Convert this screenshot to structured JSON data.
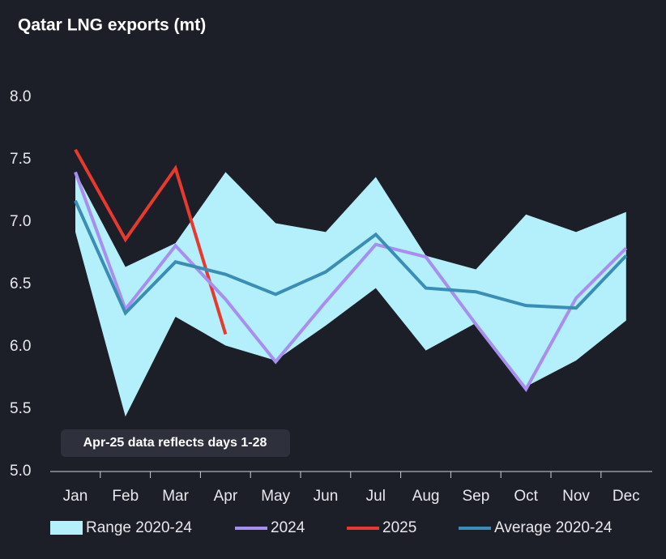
{
  "chart_data": {
    "type": "line",
    "title": "Qatar LNG exports (mt)",
    "categories": [
      "Jan",
      "Feb",
      "Mar",
      "Apr",
      "May",
      "Jun",
      "Jul",
      "Aug",
      "Sep",
      "Oct",
      "Nov",
      "Dec"
    ],
    "ylim": [
      5,
      8
    ],
    "yticks": [
      {
        "value": 5,
        "label": "5.0"
      },
      5.5,
      {
        "value": 6,
        "label": "6.0"
      },
      6.5,
      {
        "value": 7,
        "label": "7.0"
      },
      7.5,
      {
        "value": 8,
        "label": "8.0"
      }
    ],
    "range": {
      "name": "Range 2020-24",
      "color": "#b3f0fb",
      "upper": [
        7.4,
        6.64,
        6.83,
        7.4,
        6.99,
        6.92,
        7.36,
        6.73,
        6.62,
        7.06,
        6.92,
        7.08
      ],
      "lower": [
        6.92,
        5.44,
        6.24,
        6.01,
        5.89,
        6.17,
        6.47,
        5.97,
        6.19,
        5.68,
        5.89,
        6.21
      ]
    },
    "series": [
      {
        "name": "2024",
        "color": "#a88ef0",
        "values": [
          7.4,
          6.3,
          6.81,
          6.38,
          5.88,
          6.36,
          6.82,
          6.72,
          6.18,
          5.66,
          6.39,
          6.79
        ]
      },
      {
        "name": "2025",
        "color": "#e8392f",
        "values": [
          7.58,
          6.86,
          7.43,
          6.1,
          null,
          null,
          null,
          null,
          null,
          null,
          null,
          null
        ]
      },
      {
        "name": "Average 2020-24",
        "color": "#3a8db5",
        "values": [
          7.17,
          6.27,
          6.68,
          6.58,
          6.42,
          6.6,
          6.9,
          6.47,
          6.44,
          6.33,
          6.31,
          6.73
        ]
      }
    ],
    "annotation": "Apr-25 data reflects days 1-28"
  }
}
